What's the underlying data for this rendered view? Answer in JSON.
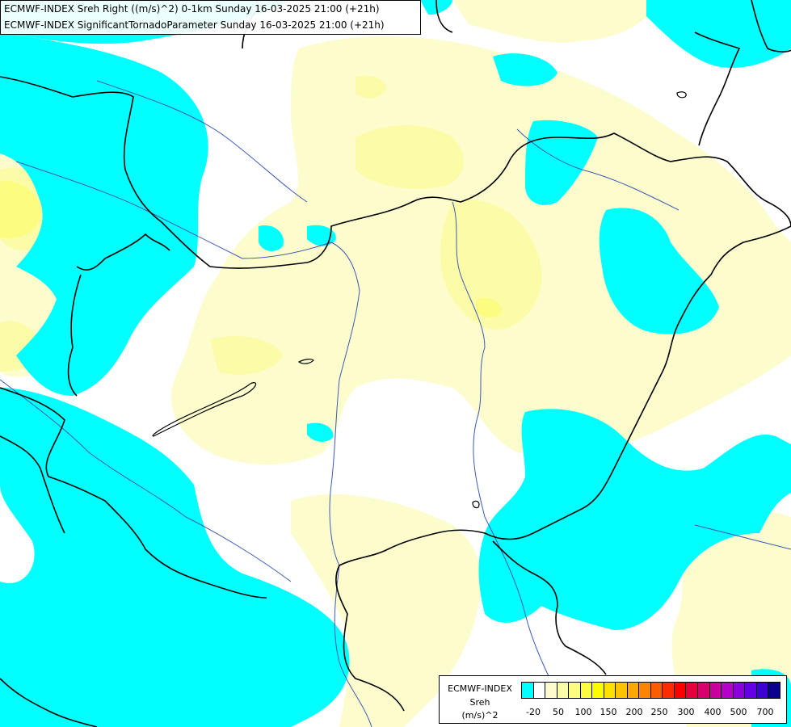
{
  "title_lines": [
    "ECMWF-INDEX Sreh Right ((m/s)^2) 0-1km Sunday 16-03-2025 21:00 (+21h)",
    "ECMWF-INDEX SignificantTornadoParameter Sunday 16-03-2025 21:00 (+21h)"
  ],
  "legend": {
    "model": "ECMWF-INDEX",
    "parameter": "Sreh",
    "unit": "(m/s)^2",
    "tick_labels": [
      "-20",
      "50",
      "100",
      "150",
      "200",
      "250",
      "300",
      "400",
      "500",
      "700"
    ],
    "colors": [
      "#00ffff",
      "#ffffff",
      "#fcfccc",
      "#fcfca8",
      "#fcfc80",
      "#fcfc40",
      "#fcfc00",
      "#fce000",
      "#fcc400",
      "#fca800",
      "#fc8400",
      "#fc5c00",
      "#fc2c00",
      "#fc0000",
      "#e8003c",
      "#d8006c",
      "#c8009c",
      "#b400c8",
      "#8c00dc",
      "#6400e8",
      "#3c00d4",
      "#0c0090"
    ]
  },
  "map_colors": {
    "cyan": "#00ffff",
    "pale_yellow": "#fcfccc",
    "light_yellow": "#fcfca8",
    "yellow": "#fcfc80",
    "border": "#000000",
    "river": "#3c5ab4"
  }
}
